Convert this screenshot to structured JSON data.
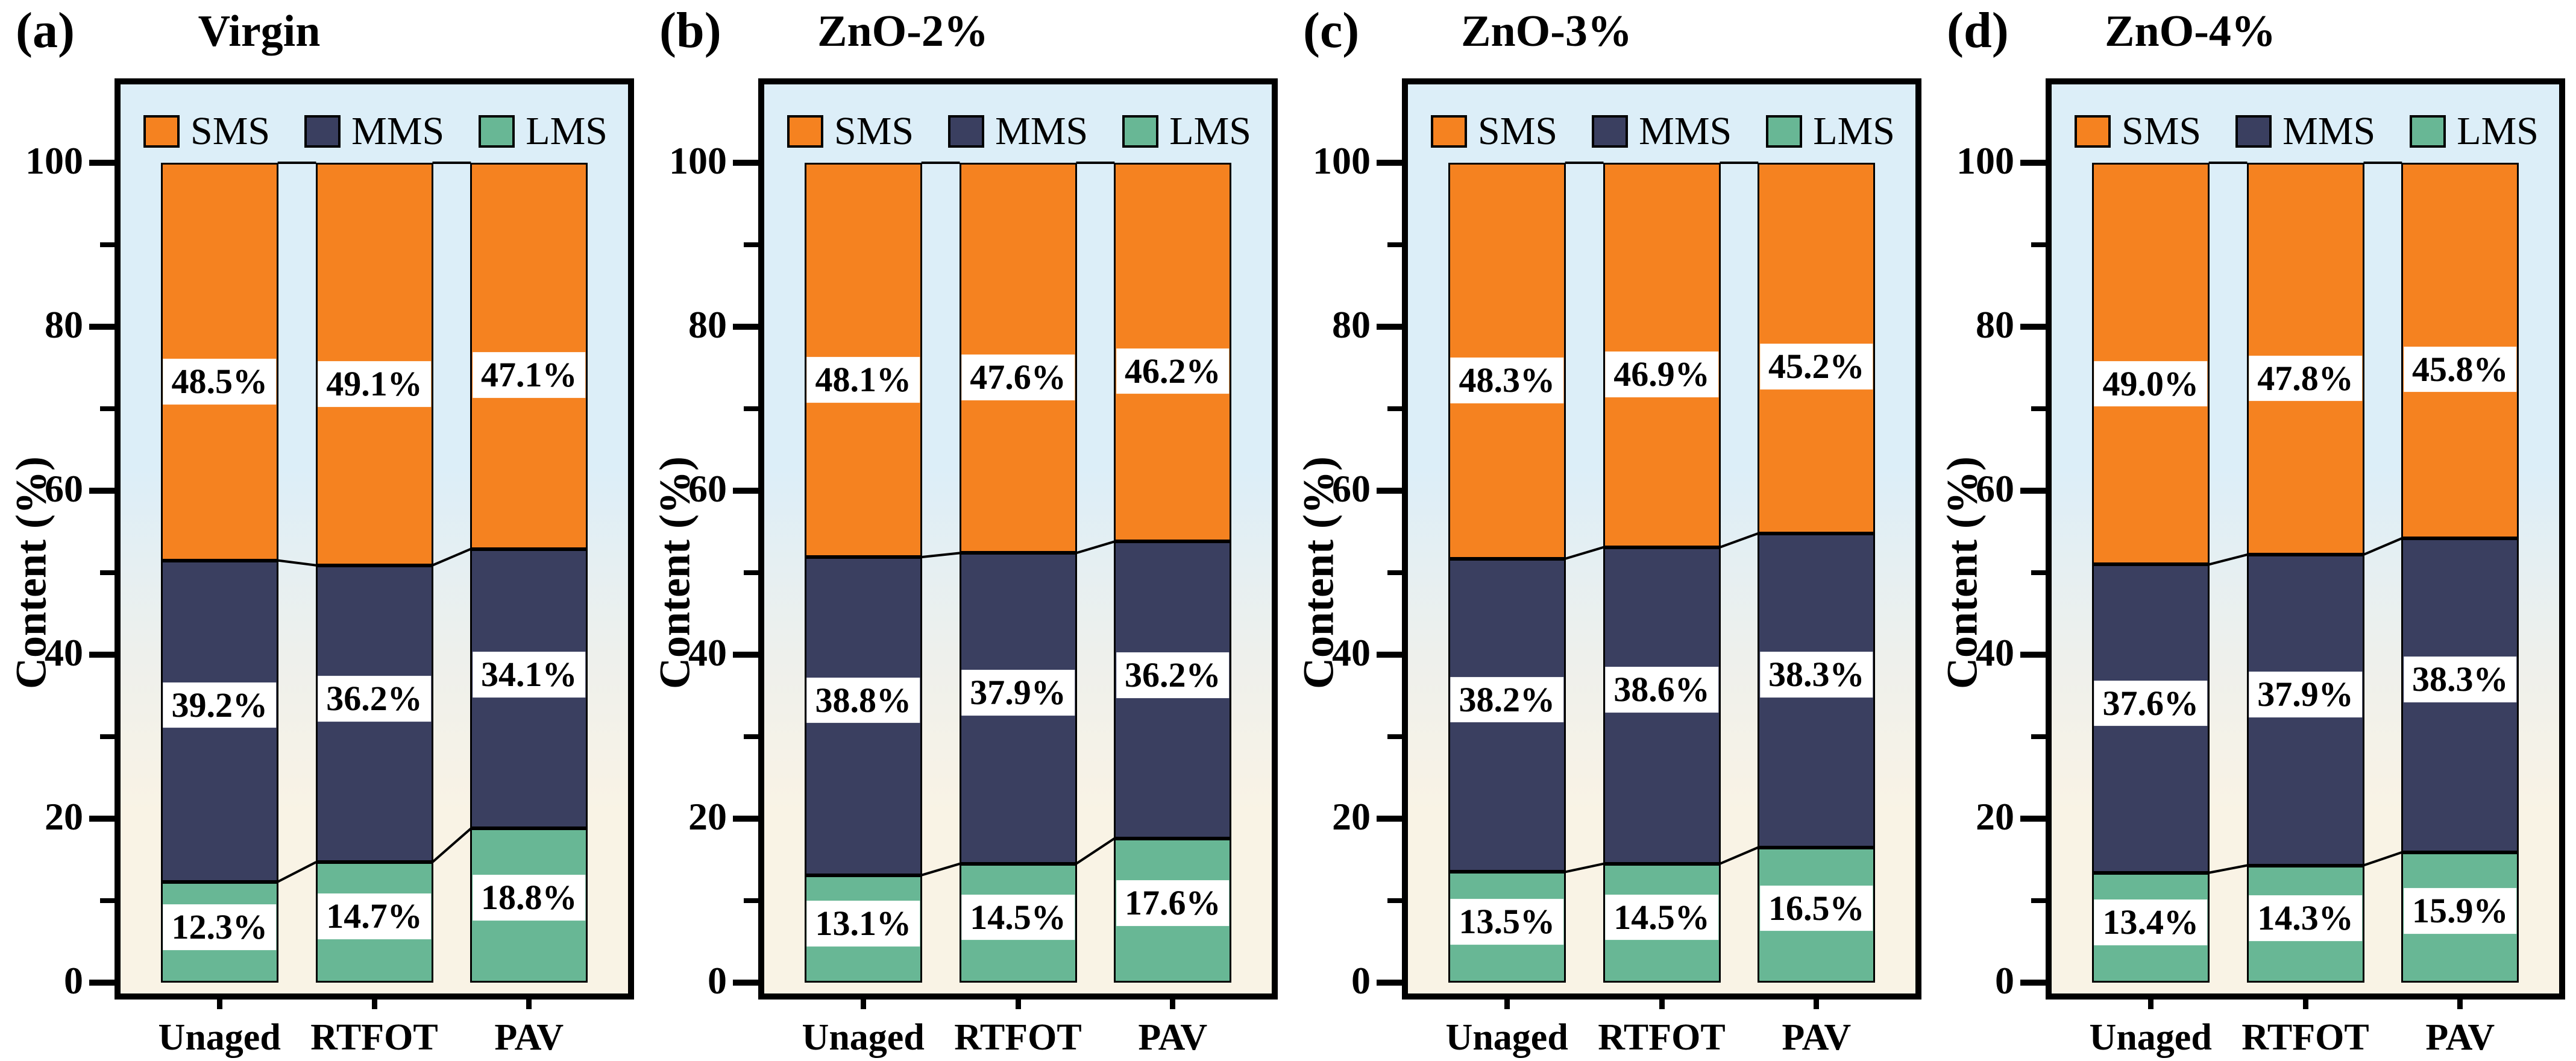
{
  "figure": {
    "ylabel": "Content (%)",
    "legend": [
      "SMS",
      "MMS",
      "LMS"
    ],
    "categories": [
      "Unaged",
      "RTFOT",
      "PAV"
    ],
    "yticks": [
      0,
      20,
      40,
      60,
      80,
      100
    ],
    "minor_yticks": [
      10,
      30,
      50,
      70,
      90
    ]
  },
  "colors": {
    "sms": "#f58220",
    "mms": "#3a3f60",
    "lms": "#68b795",
    "axis": "#000000",
    "plot_bg_top": "#dceef8",
    "plot_bg_bottom": "#f9f3e5",
    "label_box": "#ffffff"
  },
  "chart_data": [
    {
      "type": "bar",
      "stacked": true,
      "panel_label": "(a)",
      "title": "Virgin",
      "categories": [
        "Unaged",
        "RTFOT",
        "PAV"
      ],
      "ylabel": "Content (%)",
      "ylim": [
        0,
        100
      ],
      "legend_position": "top-inside",
      "grid": false,
      "series": [
        {
          "name": "SMS",
          "values": [
            48.5,
            49.1,
            47.1
          ],
          "labels": [
            "48.5%",
            "49.1%",
            "47.1%"
          ]
        },
        {
          "name": "MMS",
          "values": [
            39.2,
            36.2,
            34.1
          ],
          "labels": [
            "39.2%",
            "36.2%",
            "34.1%"
          ]
        },
        {
          "name": "LMS",
          "values": [
            12.3,
            14.7,
            18.8
          ],
          "labels": [
            "12.3%",
            "14.7%",
            "18.8%"
          ]
        }
      ]
    },
    {
      "type": "bar",
      "stacked": true,
      "panel_label": "(b)",
      "title": "ZnO-2%",
      "categories": [
        "Unaged",
        "RTFOT",
        "PAV"
      ],
      "ylabel": "Content (%)",
      "ylim": [
        0,
        100
      ],
      "legend_position": "top-inside",
      "grid": false,
      "series": [
        {
          "name": "SMS",
          "values": [
            48.1,
            47.6,
            46.2
          ],
          "labels": [
            "48.1%",
            "47.6%",
            "46.2%"
          ]
        },
        {
          "name": "MMS",
          "values": [
            38.8,
            37.9,
            36.2
          ],
          "labels": [
            "38.8%",
            "37.9%",
            "36.2%"
          ]
        },
        {
          "name": "LMS",
          "values": [
            13.1,
            14.5,
            17.6
          ],
          "labels": [
            "13.1%",
            "14.5%",
            "17.6%"
          ]
        }
      ]
    },
    {
      "type": "bar",
      "stacked": true,
      "panel_label": "(c)",
      "title": "ZnO-3%",
      "categories": [
        "Unaged",
        "RTFOT",
        "PAV"
      ],
      "ylabel": "Content (%)",
      "ylim": [
        0,
        100
      ],
      "legend_position": "top-inside",
      "grid": false,
      "series": [
        {
          "name": "SMS",
          "values": [
            48.3,
            46.9,
            45.2
          ],
          "labels": [
            "48.3%",
            "46.9%",
            "45.2%"
          ]
        },
        {
          "name": "MMS",
          "values": [
            38.2,
            38.6,
            38.3
          ],
          "labels": [
            "38.2%",
            "38.6%",
            "38.3%"
          ]
        },
        {
          "name": "LMS",
          "values": [
            13.5,
            14.5,
            16.5
          ],
          "labels": [
            "13.5%",
            "14.5%",
            "16.5%"
          ]
        }
      ]
    },
    {
      "type": "bar",
      "stacked": true,
      "panel_label": "(d)",
      "title": "ZnO-4%",
      "categories": [
        "Unaged",
        "RTFOT",
        "PAV"
      ],
      "ylabel": "Content (%)",
      "ylim": [
        0,
        100
      ],
      "legend_position": "top-inside",
      "grid": false,
      "series": [
        {
          "name": "SMS",
          "values": [
            49.0,
            47.8,
            45.8
          ],
          "labels": [
            "49.0%",
            "47.8%",
            "45.8%"
          ]
        },
        {
          "name": "MMS",
          "values": [
            37.6,
            37.9,
            38.3
          ],
          "labels": [
            "37.6%",
            "37.9%",
            "38.3%"
          ]
        },
        {
          "name": "LMS",
          "values": [
            13.4,
            14.3,
            15.9
          ],
          "labels": [
            "13.4%",
            "14.3%",
            "15.9%"
          ]
        }
      ]
    }
  ]
}
